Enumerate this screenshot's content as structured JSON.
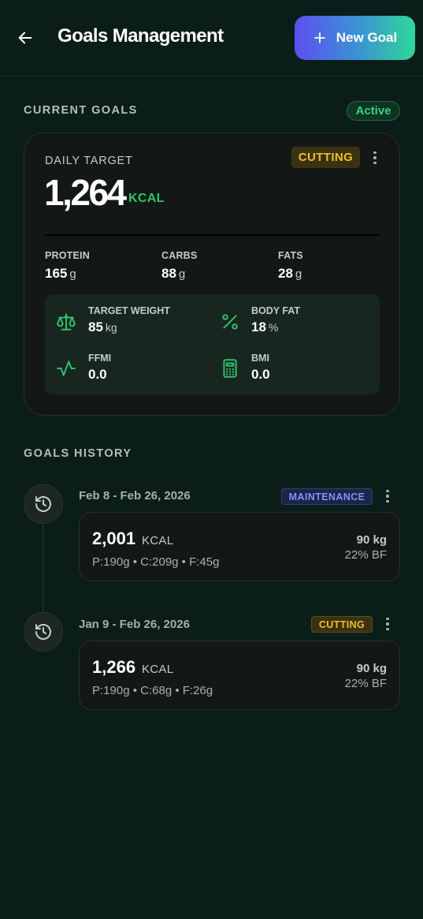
{
  "header": {
    "title": "Goals Management",
    "new_goal_label": "New Goal"
  },
  "current": {
    "section_label": "CURRENT GOALS",
    "status": "Active",
    "card": {
      "daily_target_label": "DAILY TARGET",
      "phase": "CUTTING",
      "kcal": "1,264",
      "kcal_unit": "KCAL",
      "macros": [
        {
          "label": "PROTEIN",
          "value": "165",
          "unit": "g"
        },
        {
          "label": "CARBS",
          "value": "88",
          "unit": "g"
        },
        {
          "label": "FATS",
          "value": "28",
          "unit": "g"
        }
      ],
      "stats": [
        {
          "label": "TARGET WEIGHT",
          "value": "85",
          "unit": "kg",
          "icon": "scale-icon"
        },
        {
          "label": "BODY FAT",
          "value": "18",
          "unit": "%",
          "icon": "percent-icon"
        },
        {
          "label": "FFMI",
          "value": "0.0",
          "unit": "",
          "icon": "activity-icon"
        },
        {
          "label": "BMI",
          "value": "0.0",
          "unit": "",
          "icon": "calculator-icon"
        }
      ]
    }
  },
  "history": {
    "section_label": "GOALS HISTORY",
    "items": [
      {
        "date_range": "Feb 8 - Feb 26, 2026",
        "phase": "MAINTENANCE",
        "kcal": "2,001",
        "kcal_unit": "KCAL",
        "macros": "P:190g • C:209g • F:45g",
        "weight": "90 kg",
        "body_fat": "22% BF"
      },
      {
        "date_range": "Jan 9 - Feb 26, 2026",
        "phase": "CUTTING",
        "kcal": "1,266",
        "kcal_unit": "KCAL",
        "macros": "P:190g • C:68g • F:26g",
        "weight": "90 kg",
        "body_fat": "22% BF"
      }
    ]
  },
  "colors": {
    "background": "#0b1d18",
    "accent_green": "#2fc46c",
    "cutting": "#f2bc2c",
    "maintenance": "#7c93ff"
  }
}
